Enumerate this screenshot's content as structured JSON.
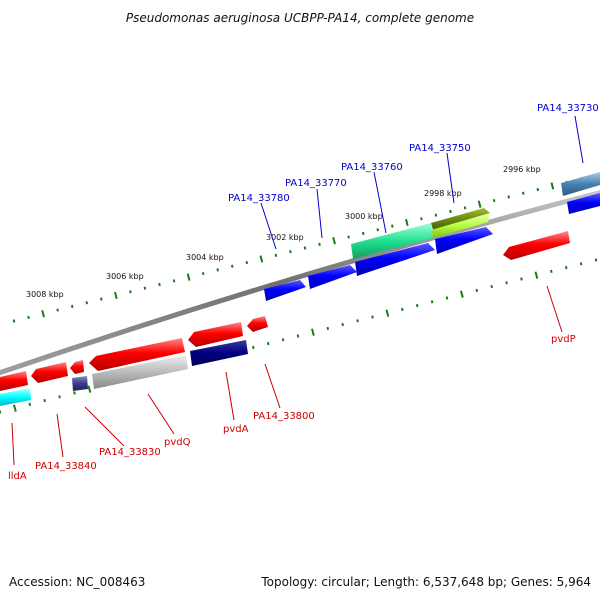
{
  "title": "Pseudomonas aeruginosa UCBPP-PA14, complete genome",
  "footer": {
    "accession": "Accession: NC_008463",
    "summary": "Topology: circular; Length: 6,537,648 bp; Genes: 5,964"
  },
  "scale_labels": [
    "2996 kbp",
    "2998 kbp",
    "3000 kbp",
    "3002 kbp",
    "3004 kbp",
    "3006 kbp",
    "3008 kbp"
  ],
  "upper_genes": [
    "PA14_33730",
    "PA14_33750",
    "PA14_33760",
    "PA14_33770",
    "PA14_33780"
  ],
  "lower_genes": [
    "pvdP",
    "PA14_33800",
    "pvdA",
    "pvdQ",
    "PA14_33830",
    "PA14_33840",
    "lldA"
  ],
  "colors": {
    "upper_label": "#0000cc",
    "lower_label": "#cc0000",
    "backbone": "#808080",
    "tick": "#1a7a1a"
  }
}
